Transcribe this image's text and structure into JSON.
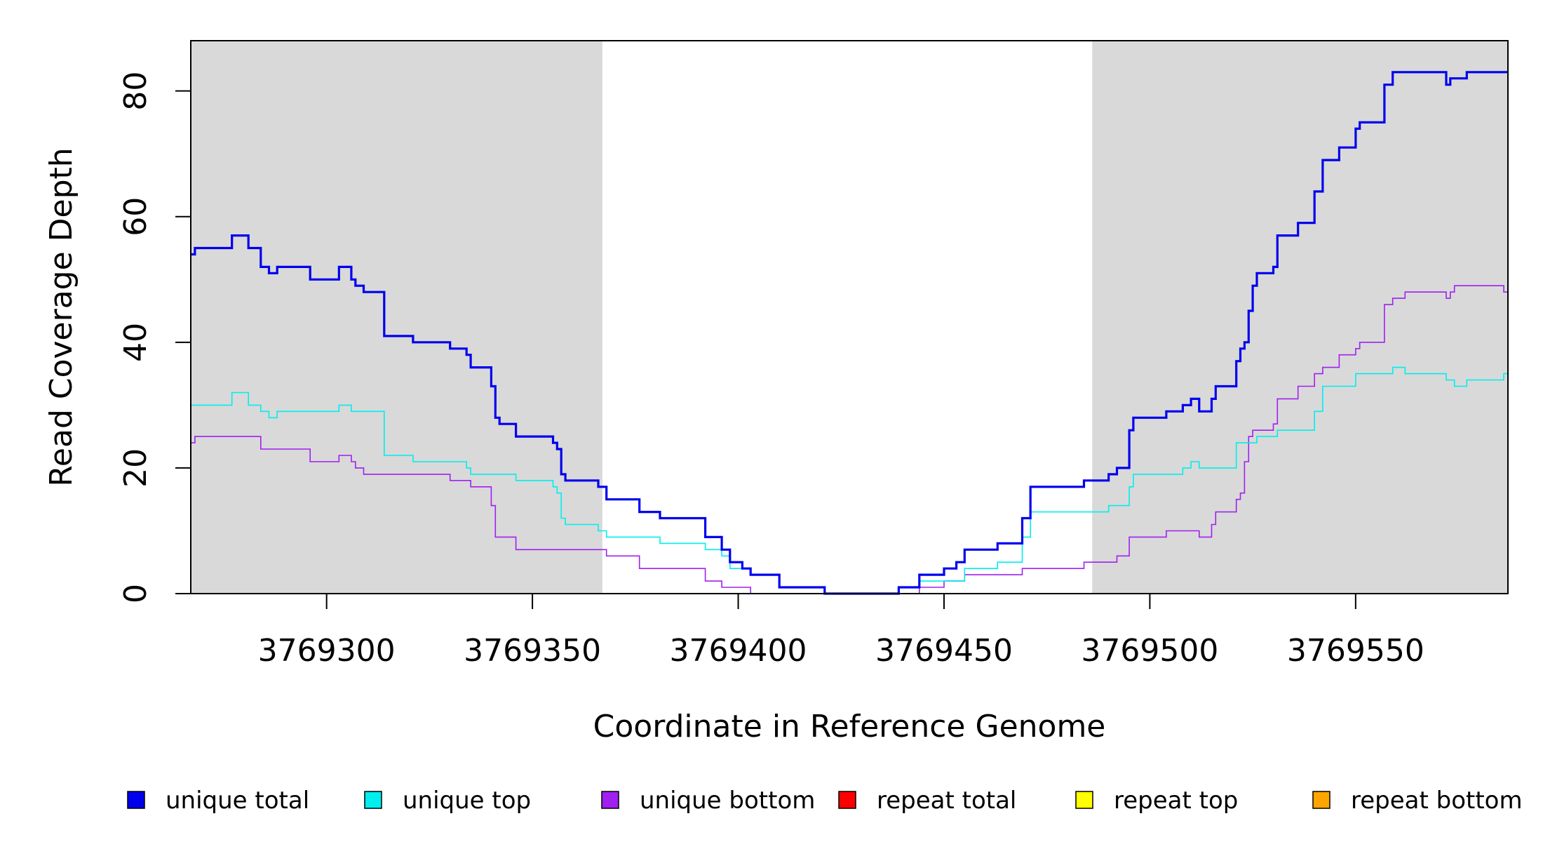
{
  "colors": {
    "background": "#ffffff",
    "shaded_region": "#d9d9d9",
    "axis": "#000000"
  },
  "chart_data": {
    "type": "line",
    "step": true,
    "xlabel": "Coordinate in Reference Genome",
    "ylabel": "Read Coverage Depth",
    "xlim": [
      3769267,
      3769587
    ],
    "ylim": [
      0,
      88
    ],
    "x_ticks": [
      3769300,
      3769350,
      3769400,
      3769450,
      3769500,
      3769550
    ],
    "y_ticks": [
      0,
      20,
      40,
      60,
      80
    ],
    "x_tick_labels": [
      "3769300",
      "3769350",
      "3769400",
      "3769450",
      "3769500",
      "3769550"
    ],
    "y_tick_labels": [
      "0",
      "20",
      "40",
      "60",
      "80"
    ],
    "shaded_regions": [
      [
        3769267,
        3769367
      ],
      [
        3769486,
        3769587
      ]
    ],
    "legend_placement": "bottom",
    "series": [
      {
        "name": "unique total",
        "color": "#0000ee",
        "emphasis": "thick",
        "points": [
          [
            3769267,
            54
          ],
          [
            3769268,
            55
          ],
          [
            3769277,
            57
          ],
          [
            3769281,
            55
          ],
          [
            3769284,
            52
          ],
          [
            3769286,
            51
          ],
          [
            3769288,
            52
          ],
          [
            3769296,
            50
          ],
          [
            3769303,
            52
          ],
          [
            3769306,
            50
          ],
          [
            3769307,
            49
          ],
          [
            3769309,
            48
          ],
          [
            3769314,
            41
          ],
          [
            3769321,
            40
          ],
          [
            3769330,
            39
          ],
          [
            3769334,
            38
          ],
          [
            3769335,
            36
          ],
          [
            3769340,
            33
          ],
          [
            3769341,
            28
          ],
          [
            3769342,
            27
          ],
          [
            3769346,
            25
          ],
          [
            3769355,
            24
          ],
          [
            3769356,
            23
          ],
          [
            3769357,
            19
          ],
          [
            3769358,
            18
          ],
          [
            3769366,
            17
          ],
          [
            3769368,
            15
          ],
          [
            3769376,
            13
          ],
          [
            3769381,
            12
          ],
          [
            3769392,
            9
          ],
          [
            3769396,
            7
          ],
          [
            3769398,
            5
          ],
          [
            3769401,
            4
          ],
          [
            3769403,
            3
          ],
          [
            3769410,
            1
          ],
          [
            3769421,
            0
          ],
          [
            3769439,
            1
          ],
          [
            3769444,
            3
          ],
          [
            3769450,
            4
          ],
          [
            3769453,
            5
          ],
          [
            3769455,
            7
          ],
          [
            3769463,
            8
          ],
          [
            3769469,
            12
          ],
          [
            3769471,
            17
          ],
          [
            3769484,
            18
          ],
          [
            3769490,
            19
          ],
          [
            3769492,
            20
          ],
          [
            3769495,
            26
          ],
          [
            3769496,
            28
          ],
          [
            3769504,
            29
          ],
          [
            3769508,
            30
          ],
          [
            3769510,
            31
          ],
          [
            3769512,
            29
          ],
          [
            3769515,
            31
          ],
          [
            3769516,
            33
          ],
          [
            3769521,
            37
          ],
          [
            3769522,
            39
          ],
          [
            3769523,
            40
          ],
          [
            3769524,
            45
          ],
          [
            3769525,
            49
          ],
          [
            3769526,
            51
          ],
          [
            3769530,
            52
          ],
          [
            3769531,
            57
          ],
          [
            3769536,
            59
          ],
          [
            3769540,
            64
          ],
          [
            3769542,
            69
          ],
          [
            3769546,
            71
          ],
          [
            3769550,
            74
          ],
          [
            3769551,
            75
          ],
          [
            3769557,
            81
          ],
          [
            3769559,
            83
          ],
          [
            3769572,
            81
          ],
          [
            3769573,
            82
          ],
          [
            3769577,
            83
          ],
          [
            3769587,
            83
          ]
        ]
      },
      {
        "name": "unique top",
        "color": "#00eeee",
        "emphasis": "thin",
        "points": [
          [
            3769267,
            30
          ],
          [
            3769277,
            32
          ],
          [
            3769281,
            30
          ],
          [
            3769284,
            29
          ],
          [
            3769286,
            28
          ],
          [
            3769288,
            29
          ],
          [
            3769303,
            30
          ],
          [
            3769306,
            29
          ],
          [
            3769314,
            22
          ],
          [
            3769321,
            21
          ],
          [
            3769334,
            20
          ],
          [
            3769335,
            19
          ],
          [
            3769341,
            19
          ],
          [
            3769346,
            18
          ],
          [
            3769355,
            17
          ],
          [
            3769356,
            16
          ],
          [
            3769357,
            12
          ],
          [
            3769358,
            11
          ],
          [
            3769366,
            10
          ],
          [
            3769368,
            9
          ],
          [
            3769381,
            8
          ],
          [
            3769392,
            7
          ],
          [
            3769396,
            6
          ],
          [
            3769398,
            4
          ],
          [
            3769403,
            3
          ],
          [
            3769410,
            1
          ],
          [
            3769421,
            0
          ],
          [
            3769439,
            1
          ],
          [
            3769444,
            2
          ],
          [
            3769453,
            2
          ],
          [
            3769455,
            4
          ],
          [
            3769463,
            5
          ],
          [
            3769469,
            9
          ],
          [
            3769471,
            13
          ],
          [
            3769490,
            14
          ],
          [
            3769495,
            17
          ],
          [
            3769496,
            19
          ],
          [
            3769508,
            20
          ],
          [
            3769510,
            21
          ],
          [
            3769512,
            20
          ],
          [
            3769521,
            24
          ],
          [
            3769526,
            25
          ],
          [
            3769531,
            26
          ],
          [
            3769540,
            29
          ],
          [
            3769542,
            33
          ],
          [
            3769550,
            35
          ],
          [
            3769559,
            36
          ],
          [
            3769562,
            35
          ],
          [
            3769572,
            34
          ],
          [
            3769574,
            33
          ],
          [
            3769577,
            34
          ],
          [
            3769586,
            35
          ],
          [
            3769587,
            35
          ]
        ]
      },
      {
        "name": "unique bottom",
        "color": "#a020f0",
        "emphasis": "thin",
        "points": [
          [
            3769267,
            24
          ],
          [
            3769268,
            25
          ],
          [
            3769284,
            23
          ],
          [
            3769296,
            21
          ],
          [
            3769303,
            22
          ],
          [
            3769306,
            21
          ],
          [
            3769307,
            20
          ],
          [
            3769309,
            19
          ],
          [
            3769330,
            18
          ],
          [
            3769335,
            17
          ],
          [
            3769340,
            14
          ],
          [
            3769341,
            9
          ],
          [
            3769346,
            7
          ],
          [
            3769366,
            7
          ],
          [
            3769368,
            6
          ],
          [
            3769376,
            4
          ],
          [
            3769392,
            2
          ],
          [
            3769396,
            1
          ],
          [
            3769403,
            0
          ],
          [
            3769444,
            1
          ],
          [
            3769450,
            2
          ],
          [
            3769455,
            3
          ],
          [
            3769469,
            4
          ],
          [
            3769484,
            5
          ],
          [
            3769492,
            6
          ],
          [
            3769495,
            9
          ],
          [
            3769504,
            10
          ],
          [
            3769512,
            9
          ],
          [
            3769515,
            11
          ],
          [
            3769516,
            13
          ],
          [
            3769521,
            15
          ],
          [
            3769522,
            16
          ],
          [
            3769523,
            21
          ],
          [
            3769524,
            25
          ],
          [
            3769525,
            26
          ],
          [
            3769530,
            27
          ],
          [
            3769531,
            31
          ],
          [
            3769536,
            33
          ],
          [
            3769540,
            35
          ],
          [
            3769542,
            36
          ],
          [
            3769546,
            38
          ],
          [
            3769550,
            39
          ],
          [
            3769551,
            40
          ],
          [
            3769557,
            46
          ],
          [
            3769559,
            47
          ],
          [
            3769562,
            48
          ],
          [
            3769572,
            47
          ],
          [
            3769573,
            48
          ],
          [
            3769574,
            49
          ],
          [
            3769586,
            48
          ],
          [
            3769587,
            48
          ]
        ]
      },
      {
        "name": "repeat total",
        "color": "#ff0000",
        "emphasis": "thin",
        "points": [
          [
            3769267,
            0
          ],
          [
            3769587,
            0
          ]
        ]
      },
      {
        "name": "repeat top",
        "color": "#ffff00",
        "emphasis": "thin",
        "points": [
          [
            3769267,
            0
          ],
          [
            3769587,
            0
          ]
        ]
      },
      {
        "name": "repeat bottom",
        "color": "#ffa500",
        "emphasis": "thin",
        "points": [
          [
            3769267,
            0
          ],
          [
            3769587,
            0
          ]
        ]
      }
    ]
  }
}
